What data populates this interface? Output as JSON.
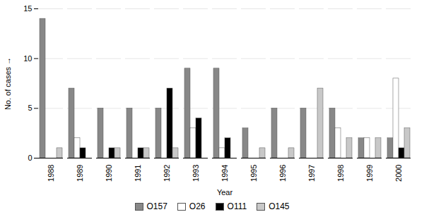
{
  "chart_data": {
    "type": "bar",
    "xlabel": "Year",
    "ylabel": "No. of cases",
    "categories": [
      "1988",
      "1989",
      "1990",
      "1991",
      "1992",
      "1993",
      "1994",
      "1995",
      "1996",
      "1997",
      "1998",
      "1999",
      "2000"
    ],
    "series": [
      {
        "name": "O157",
        "color": "#888888",
        "values": [
          14,
          7,
          5,
          5,
          5,
          9,
          9,
          3,
          5,
          5,
          5,
          2,
          2
        ]
      },
      {
        "name": "O26",
        "color": "#ffffff",
        "values": [
          0,
          2,
          0,
          0,
          0,
          3,
          1,
          0,
          0,
          0,
          3,
          2,
          8
        ]
      },
      {
        "name": "O111",
        "color": "#000000",
        "values": [
          0,
          1,
          1,
          1,
          7,
          4,
          2,
          0,
          0,
          0,
          0,
          0,
          1
        ]
      },
      {
        "name": "O145",
        "color": "#c8c8c8",
        "values": [
          1,
          0,
          1,
          1,
          1,
          0,
          0,
          1,
          1,
          7,
          2,
          2,
          3
        ]
      }
    ],
    "ylim": [
      0,
      15
    ],
    "yticks": [
      0,
      5,
      10,
      15
    ],
    "grid": true,
    "legend": "bottom"
  }
}
